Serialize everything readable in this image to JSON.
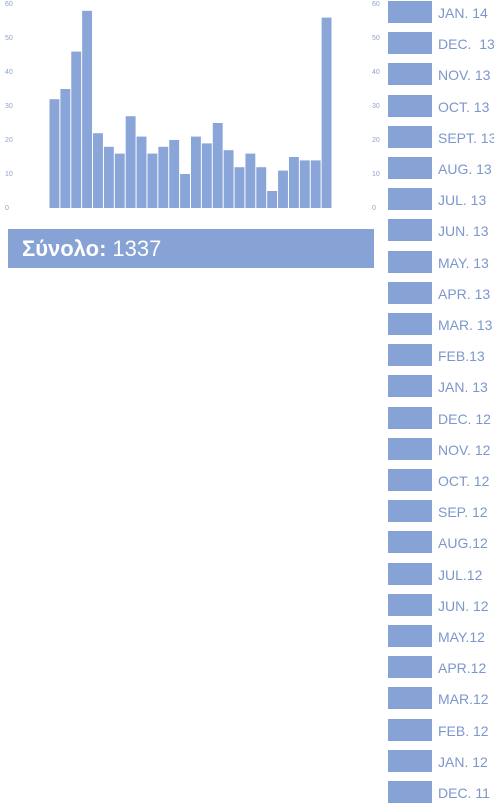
{
  "chart_data": {
    "type": "bar",
    "categories": [
      null,
      null,
      null,
      null,
      null,
      null,
      null,
      null,
      null,
      null,
      null,
      null,
      null,
      null,
      null,
      null,
      null,
      null,
      null,
      null,
      null,
      null,
      null,
      null,
      null,
      null
    ],
    "values": [
      32,
      35,
      46,
      58,
      22,
      18,
      16,
      27,
      21,
      16,
      18,
      20,
      10,
      21,
      19,
      25,
      17,
      12,
      16,
      12,
      5,
      11,
      15,
      14,
      14,
      56
    ],
    "color": "#8aa5d8",
    "ylim": [
      0,
      60
    ],
    "yticks": [
      0,
      10,
      20,
      30,
      40,
      50,
      60
    ]
  },
  "total": {
    "label": "Σύνολο:",
    "value": 1337
  },
  "months": [
    "JAN. 14",
    "DEC.  13",
    "NOV. 13",
    "OCT. 13",
    "SEPT. 13",
    "AUG. 13",
    "JUL. 13",
    "JUN. 13",
    "MAY. 13",
    "APR. 13",
    "MAR. 13",
    "FEB.13",
    "JAN. 13",
    "DEC. 12",
    "NOV. 12",
    "OCT. 12",
    "SEP. 12",
    "AUG.12",
    "JUL.12",
    "JUN. 12",
    "MAY.12",
    "APR.12",
    "MAR.12",
    "FEB. 12",
    "JAN. 12",
    "DEC. 11"
  ]
}
